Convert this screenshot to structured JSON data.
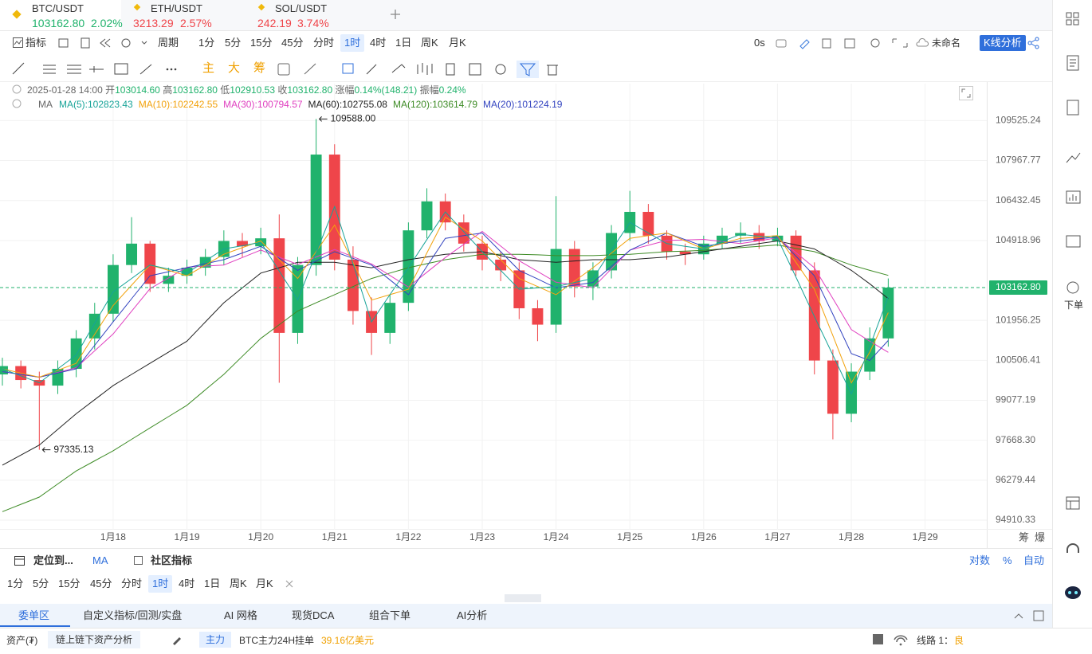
{
  "ui": {
    "tabs": [
      {
        "symbol": "BTC/USDT",
        "price": "103162.80",
        "change": "2.02%"
      },
      {
        "symbol": "ETH/USDT",
        "price": "3213.29",
        "change": "2.57%"
      },
      {
        "symbol": "SOL/USDT",
        "price": "242.19",
        "change": "3.74%"
      }
    ],
    "toolbar": {
      "indicator": "指标",
      "period": "周期",
      "intervals": [
        "1分",
        "5分",
        "15分",
        "45分",
        "分时",
        "1时",
        "4时",
        "1日",
        "周K",
        "月K"
      ],
      "timer": "0s",
      "layout_name": "未命名",
      "analysis": "K线分析"
    },
    "tools": [
      "主",
      "大",
      "筹"
    ],
    "ohlc_header": {
      "time": "2025-01-28 14:00",
      "open_label": "开",
      "open": "103014.60",
      "high_label": "高",
      "high": "103162.80",
      "low_label": "低",
      "low": "102910.53",
      "close_label": "收",
      "close": "103162.80",
      "change_label": "涨幅",
      "change": "0.14%(148.21)",
      "amp_label": "振幅",
      "amp": "0.24%"
    },
    "ma_label": "MA",
    "axis_extra": [
      "筹",
      "爆"
    ],
    "bottom": {
      "locate": "定位到...",
      "ma": "MA",
      "community": "社区指标",
      "scale_options": [
        "对数",
        "%",
        "自动"
      ]
    },
    "panel_tabs": [
      "委单区",
      "自定义指标/回测/实盘",
      "AI 网格",
      "现货DCA",
      "组合下单",
      "AI分析"
    ],
    "status": {
      "assets": "资产(₮)",
      "analysis": "链上链下资产分析",
      "badge": "主力",
      "orders_label": "BTC主力24H挂单",
      "orders_value": "39.16亿美元",
      "line": "线路 1：",
      "quality": "良"
    },
    "sidebar": {
      "order": "下单"
    }
  },
  "chart_data": {
    "type": "candlestick",
    "log_scale": true,
    "grid": true,
    "up_color": "#20b26c",
    "down_color": "#ef454a",
    "xlim": [
      -0.13,
      53.34
    ],
    "xticks": [
      {
        "value": 6,
        "label": "1月18"
      },
      {
        "value": 10,
        "label": "1月19"
      },
      {
        "value": 14,
        "label": "1月20"
      },
      {
        "value": 18,
        "label": "1月21"
      },
      {
        "value": 22,
        "label": "1月22"
      },
      {
        "value": 26,
        "label": "1月23"
      },
      {
        "value": 30,
        "label": "1月24"
      },
      {
        "value": 34,
        "label": "1月25"
      },
      {
        "value": 38,
        "label": "1月26"
      },
      {
        "value": 42,
        "label": "1月27"
      },
      {
        "value": 46,
        "label": "1月28"
      },
      {
        "value": 50,
        "label": "1月29"
      }
    ],
    "ylim": [
      94585,
      110986
    ],
    "yticks": [
      109525.24,
      107967.77,
      106432.45,
      104918.96,
      101956.25,
      100506.41,
      99077.19,
      {
        "value": 97668.3,
        "label": "97668.30"
      },
      96279.44,
      94910.33
    ],
    "last_price": {
      "value": 103162.8,
      "label": "103162.80"
    },
    "annotations": [
      {
        "text": "109588.00",
        "value": 109588,
        "index": 17
      },
      {
        "text": "97335.13",
        "value": 97335.13,
        "index": 2
      }
    ],
    "candles": {
      "open": [
        100000,
        100300,
        99800,
        99600,
        100200,
        101300,
        102200,
        104000,
        104800,
        103300,
        103600,
        103900,
        104300,
        104900,
        104700,
        105000,
        101500,
        104000,
        108200,
        104200,
        102300,
        101500,
        102600,
        105300,
        106400,
        105600,
        104800,
        104200,
        103800,
        102400,
        101800,
        104600,
        103200,
        103800,
        105200,
        106000,
        105100,
        104500,
        104400,
        104800,
        105100,
        105200,
        104900,
        105100,
        103800,
        100500,
        98600,
        100100,
        101300
      ],
      "high": [
        100600,
        100500,
        100100,
        100500,
        101600,
        102600,
        104400,
        105800,
        104900,
        103900,
        104200,
        104600,
        105300,
        105200,
        105400,
        105900,
        104300,
        109588,
        108600,
        104700,
        102800,
        102900,
        105600,
        106900,
        106700,
        105900,
        105100,
        104500,
        104100,
        102700,
        106600,
        104900,
        104100,
        105500,
        106800,
        106300,
        105300,
        104800,
        105100,
        105400,
        105600,
        105500,
        105400,
        105300,
        104100,
        100900,
        100400,
        101700,
        103500
      ],
      "low": [
        99600,
        99500,
        97335.13,
        99300,
        99900,
        100900,
        101900,
        103700,
        103000,
        103000,
        103300,
        103600,
        104000,
        104300,
        104400,
        99700,
        101100,
        103600,
        103800,
        101800,
        100700,
        101100,
        102300,
        105000,
        105300,
        104500,
        103800,
        103400,
        102000,
        101200,
        101500,
        102800,
        102700,
        103500,
        104900,
        104800,
        104200,
        104000,
        104200,
        104600,
        104800,
        104600,
        104700,
        103600,
        100000,
        97700,
        98300,
        99800,
        101000
      ],
      "close": [
        100300,
        99800,
        99600,
        100200,
        101300,
        102200,
        104000,
        104800,
        103300,
        103600,
        103900,
        104300,
        104900,
        104700,
        105000,
        101500,
        104000,
        108200,
        104200,
        102300,
        101500,
        102600,
        105300,
        106400,
        105600,
        104800,
        104200,
        103800,
        102400,
        101800,
        104600,
        103200,
        103800,
        105200,
        106000,
        105100,
        104500,
        104400,
        104800,
        105100,
        105200,
        104900,
        105100,
        103800,
        100500,
        98600,
        100100,
        101300,
        103162.8
      ]
    },
    "series": [
      {
        "name": "MA(120)",
        "label": "MA(120):103614.79",
        "color": "#3d8b25",
        "values": [
          95200,
          95450,
          95700,
          96150,
          96600,
          96950,
          97300,
          97700,
          98100,
          98500,
          98900,
          99450,
          100000,
          100650,
          101300,
          101800,
          102300,
          102600,
          102900,
          103200,
          103500,
          103700,
          103900,
          104050,
          104200,
          104300,
          104400,
          104400,
          104400,
          104380,
          104350,
          104350,
          104350,
          104380,
          104400,
          104450,
          104500,
          104520,
          104550,
          104600,
          104650,
          104700,
          104750,
          104620,
          104500,
          104250,
          104000,
          103800,
          103614.79
        ]
      },
      {
        "name": "MA(60)",
        "label": "MA(60):102755.08",
        "color": "#222222",
        "values": [
          96800,
          97150,
          97500,
          98050,
          98600,
          99100,
          99600,
          100000,
          100400,
          100800,
          101200,
          101900,
          102600,
          103150,
          103700,
          103900,
          104100,
          104100,
          104100,
          104000,
          103900,
          104050,
          104200,
          104300,
          104400,
          104450,
          104500,
          104350,
          104200,
          104150,
          104100,
          104150,
          104200,
          104200,
          104200,
          104250,
          104300,
          104400,
          104500,
          104600,
          104700,
          104800,
          104900,
          104750,
          104600,
          104200,
          103800,
          103300,
          102755.08
        ]
      },
      {
        "name": "MA(30)",
        "label": "MA(30):100794.57",
        "color": "#e040c0",
        "values": [
          100100,
          100000,
          99900,
          100070,
          100240,
          100850,
          101460,
          102290,
          103120,
          103520,
          103920,
          103960,
          104000,
          104280,
          104560,
          104290,
          104020,
          104300,
          104580,
          104310,
          104040,
          103610,
          103180,
          103730,
          104280,
          104770,
          105260,
          104710,
          104160,
          103760,
          103360,
          103260,
          103160,
          103860,
          104560,
          104740,
          104920,
          104940,
          104960,
          104880,
          104800,
          104910,
          105020,
          104460,
          103900,
          102760,
          101620,
          101200,
          100794.57
        ]
      },
      {
        "name": "MA(20)",
        "label": "MA(20):101224.19",
        "color": "#3344c0",
        "values": [
          100100,
          100000,
          99900,
          100050,
          100200,
          101050,
          101900,
          102750,
          103600,
          103750,
          103900,
          104050,
          104200,
          104450,
          104700,
          104250,
          103800,
          104150,
          104500,
          104250,
          104000,
          103450,
          102900,
          103950,
          105000,
          105100,
          105200,
          104500,
          103800,
          103480,
          103150,
          103250,
          103350,
          103950,
          104550,
          104880,
          105200,
          104950,
          104700,
          104800,
          104900,
          104980,
          105050,
          104330,
          103600,
          102180,
          100750,
          100500,
          101224.19
        ]
      },
      {
        "name": "MA(10)",
        "label": "MA(10):102242.55",
        "color": "#f2a20c",
        "values": [
          100200,
          100050,
          99900,
          100150,
          100400,
          101450,
          102500,
          103250,
          104000,
          103800,
          103600,
          104000,
          104400,
          104650,
          104900,
          104200,
          103500,
          104500,
          105500,
          104100,
          102700,
          102900,
          103100,
          104450,
          105800,
          105350,
          104900,
          104200,
          103500,
          103200,
          102900,
          103400,
          103900,
          104450,
          105000,
          105100,
          105200,
          104900,
          104600,
          104800,
          105000,
          105050,
          105100,
          104100,
          103100,
          101400,
          99700,
          100800,
          102242.55
        ]
      },
      {
        "name": "MA(5)",
        "label": "MA(5):102823.43",
        "color": "#17a398",
        "values": [
          100200,
          99950,
          99700,
          100200,
          100700,
          101850,
          103000,
          103500,
          104000,
          103850,
          103700,
          104150,
          104600,
          104720,
          104850,
          103780,
          102700,
          104450,
          106200,
          104050,
          101900,
          102900,
          103900,
          104950,
          106000,
          105250,
          104500,
          103800,
          103100,
          103150,
          103200,
          103350,
          103500,
          104550,
          105600,
          105200,
          104800,
          104700,
          104600,
          104880,
          105150,
          105080,
          105000,
          103550,
          102100,
          100700,
          99300,
          101000,
          102823.43
        ]
      }
    ],
    "legend_order": [
      5,
      4,
      2,
      1,
      0,
      3
    ]
  }
}
